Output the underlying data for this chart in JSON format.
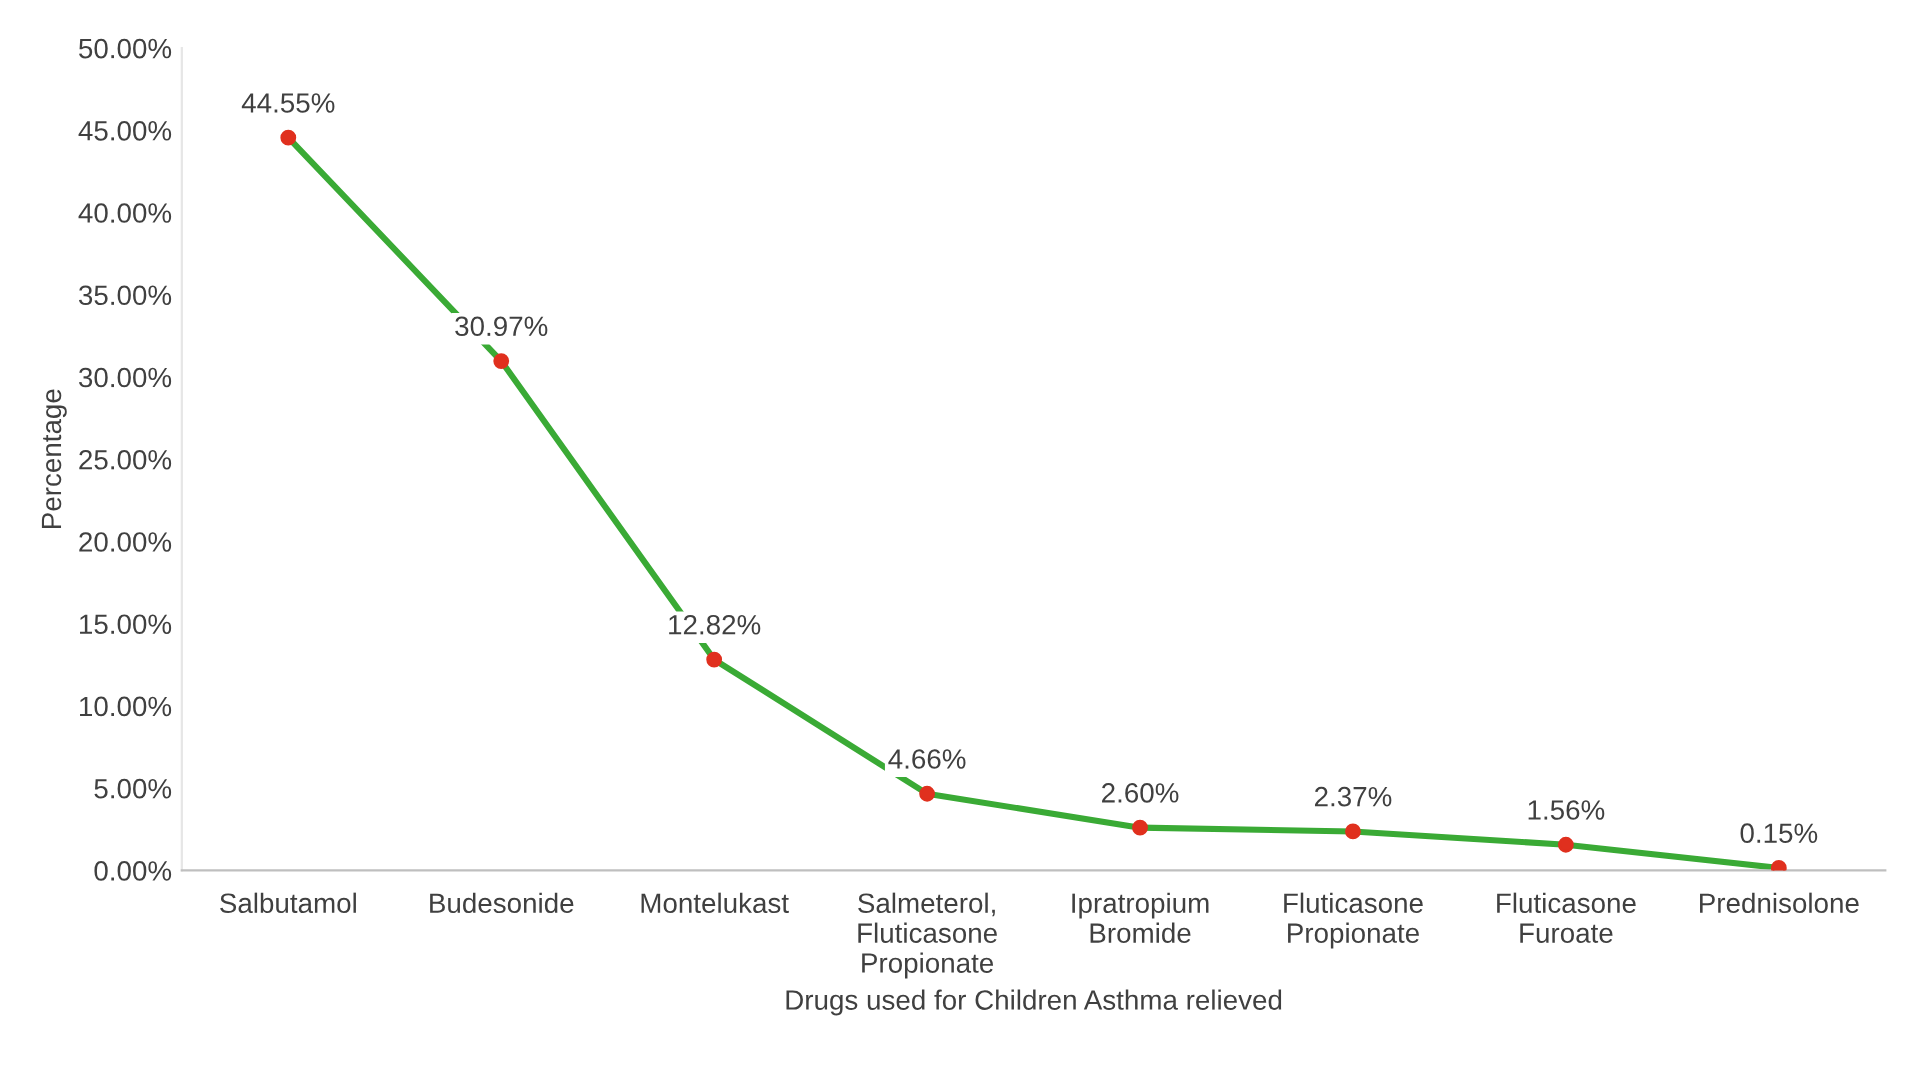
{
  "chart_data": {
    "type": "line",
    "xlabel": "Drugs used for Children Asthma relieved",
    "ylabel": "Percentage",
    "categories": [
      "Salbutamol",
      "Budesonide",
      "Montelukast",
      "Salmeterol,\nFluticasone\nPropionate",
      "Ipratropium\nBromide",
      "Fluticasone\nPropionate",
      "Fluticasone\nFuroate",
      "Prednisolone"
    ],
    "series": [
      {
        "color": "#3aaa35",
        "colors": [
          "#e0301e",
          "#e0301e",
          "#e0301e",
          "#e0301e",
          "#e0301e",
          "#e0301e",
          "#e0301e",
          "#e0301e"
        ],
        "values": [
          44.55,
          30.97,
          12.82,
          4.66,
          2.6,
          2.37,
          1.56,
          0.15
        ],
        "value_labels": [
          "44.55%",
          "30.97%",
          "12.82%",
          "4.66%",
          "2.60%",
          "2.37%",
          "1.56%",
          "0.15%"
        ]
      }
    ],
    "ylim": [
      0,
      50
    ],
    "yticks": [
      {
        "value": 0,
        "label": "0.00%"
      },
      {
        "value": 5,
        "label": "5.00%"
      },
      {
        "value": 10,
        "label": "10.00%"
      },
      {
        "value": 15,
        "label": "15.00%"
      },
      {
        "value": 20,
        "label": "20.00%"
      },
      {
        "value": 25,
        "label": "25.00%"
      },
      {
        "value": 30,
        "label": "30.00%"
      },
      {
        "value": 35,
        "label": "35.00%"
      },
      {
        "value": 40,
        "label": "40.00%"
      },
      {
        "value": 45,
        "label": "45.00%"
      },
      {
        "value": 50,
        "label": "50.00%"
      }
    ],
    "marker": "circle",
    "line_style": "solid",
    "grid": false,
    "legend": false
  }
}
